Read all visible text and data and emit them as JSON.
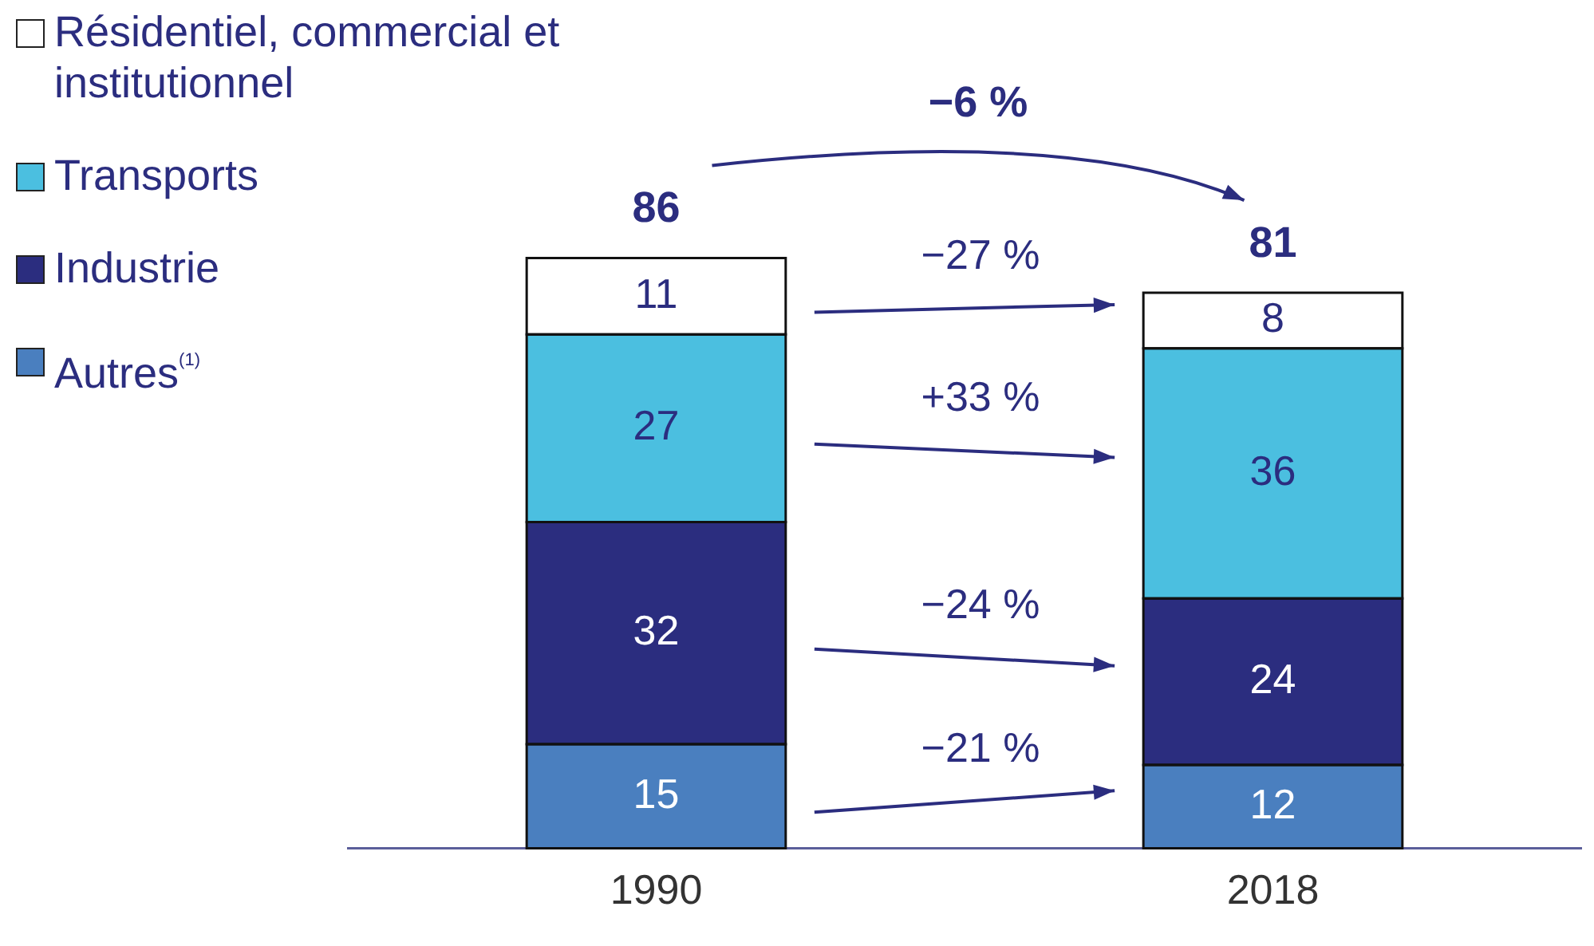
{
  "chart_data": {
    "type": "bar",
    "stacked": true,
    "categories": [
      "1990",
      "2018"
    ],
    "series": [
      {
        "name": "Autres$^{(1)}$",
        "color": "#4a7fbf",
        "values": [
          15,
          12
        ]
      },
      {
        "name": "Industrie",
        "color": "#2b2d7f",
        "values": [
          32,
          24
        ]
      },
      {
        "name": "Transports",
        "color": "#4bbfe0",
        "values": [
          27,
          36
        ]
      },
      {
        "name": "Résidentiel, commercial et institutionnel",
        "color": "#ffffff",
        "values": [
          11,
          8
        ]
      }
    ],
    "totals": [
      "86",
      "81"
    ],
    "annotations": [
      "−6 %",
      "−21 %",
      "−24 %",
      "+33 %",
      "−27 %"
    ],
    "data_labels": true,
    "grid": false,
    "legend": "left",
    "tick_labels": "x"
  }
}
